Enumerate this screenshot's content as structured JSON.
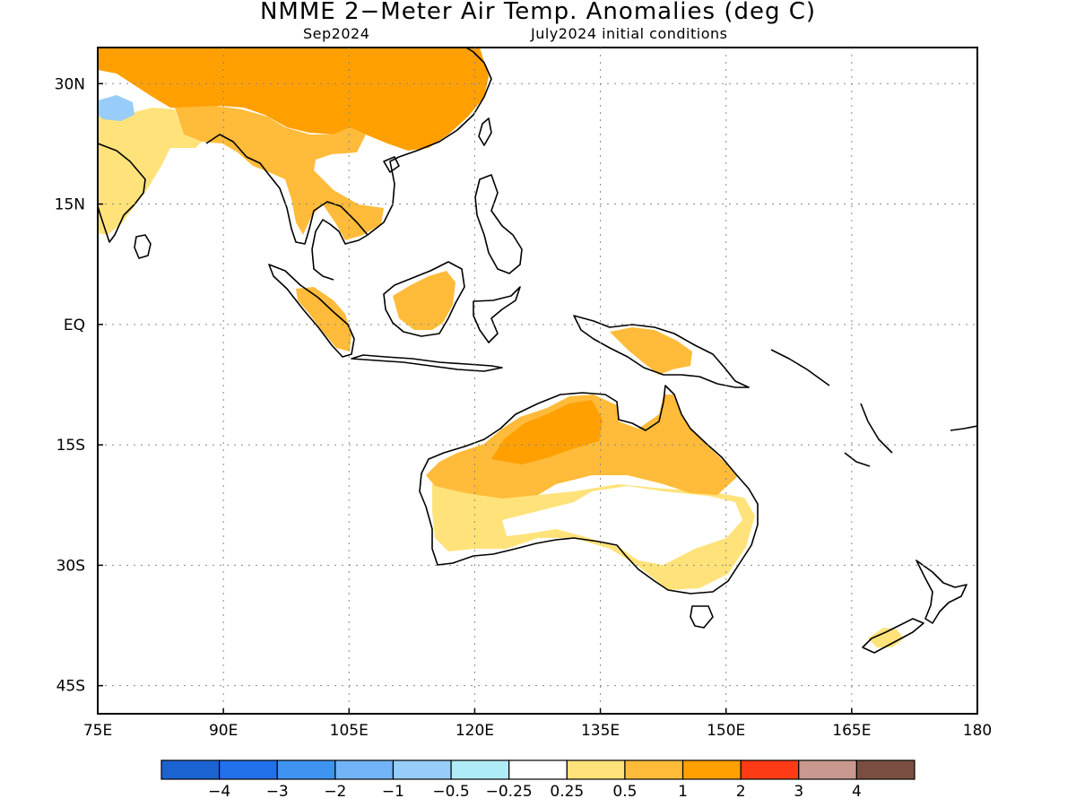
{
  "map": {
    "title": "NMME 2−Meter Air Temp. Anomalies (deg C)",
    "subtitle_left": "Sep2024",
    "subtitle_right": "July2024 initial conditions",
    "region": "Indo-Pacific / Southeast Asia / Australia",
    "lon_range": [
      75,
      180
    ],
    "lat_range": [
      -48.5,
      34.5
    ],
    "x_ticks": [
      "75E",
      "90E",
      "105E",
      "120E",
      "135E",
      "150E",
      "165E",
      "180"
    ],
    "x_tick_values": [
      75,
      90,
      105,
      120,
      135,
      150,
      165,
      180
    ],
    "y_ticks": [
      "30N",
      "15N",
      "EQ",
      "15S",
      "30S",
      "45S"
    ],
    "y_tick_values": [
      30,
      15,
      0,
      -15,
      -30,
      -45
    ],
    "grid": "dotted"
  },
  "colorbar": {
    "colors": [
      "#1c63d2",
      "#2271eb",
      "#3f94f2",
      "#72b4f7",
      "#97cdf8",
      "#b0ecf7",
      "#ffffff",
      "#ffe37a",
      "#ffbb39",
      "#ff9f00",
      "#ff3b15",
      "#c9998f",
      "#7a4f42"
    ],
    "labels": [
      "−4",
      "−3",
      "−2",
      "−1",
      "−0.5",
      "−0.25",
      "0.25",
      "0.5",
      "1",
      "2",
      "3",
      "4"
    ]
  },
  "anomaly_regions": [
    {
      "name": "China / East Asia",
      "category": "1 to 2",
      "color": "#ff9f00"
    },
    {
      "name": "Indochina",
      "category": "0.5 to 1",
      "color": "#ffbb39"
    },
    {
      "name": "India",
      "category": "0.25 to 0.5",
      "color": "#ffe37a"
    },
    {
      "name": "Tibet",
      "category": "-1 to -0.5",
      "color": "#97cdf8"
    },
    {
      "name": "Borneo",
      "category": "0.5 to 1",
      "color": "#ffbb39"
    },
    {
      "name": "Sumatra",
      "category": "0.5 to 1",
      "color": "#ffbb39"
    },
    {
      "name": "New Guinea",
      "category": "0.5 to 1",
      "color": "#ffbb39"
    },
    {
      "name": "Northwest Australia",
      "category": "1 to 2",
      "color": "#ff9f00"
    },
    {
      "name": "Northern Australia",
      "category": "0.5 to 1",
      "color": "#ffbb39"
    },
    {
      "name": "Southern Australia",
      "category": "0.25 to 0.5",
      "color": "#ffe37a"
    },
    {
      "name": "New Zealand",
      "category": "0.25 to 0.5",
      "color": "#ffe37a"
    }
  ]
}
